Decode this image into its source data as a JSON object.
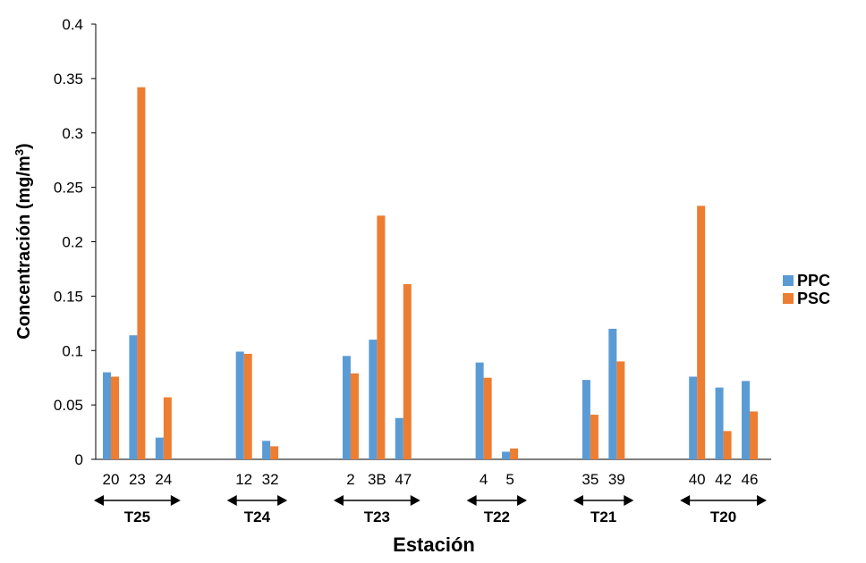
{
  "chart_data": {
    "type": "bar",
    "ylabel_main": "Concentración (mg/m",
    "ylabel_sup": "3",
    "ylabel_tail": ")",
    "xlabel": "Estación",
    "ylim": [
      0,
      0.4
    ],
    "yticks": [
      "0",
      "0.05",
      "0.1",
      "0.15",
      "0.2",
      "0.25",
      "0.3",
      "0.35",
      "0.4"
    ],
    "legend_position": "right",
    "colors": {
      "PPC": "#5B9BD5",
      "PSC": "#ED7D31"
    },
    "series": [
      {
        "name": "PPC",
        "values": [
          0.08,
          0.114,
          0.02,
          0.099,
          0.017,
          0.095,
          0.11,
          0.038,
          0.089,
          0.007,
          0.073,
          0.12,
          0.076,
          0.066,
          0.072
        ]
      },
      {
        "name": "PSC",
        "values": [
          0.076,
          0.342,
          0.057,
          0.097,
          0.012,
          0.079,
          0.224,
          0.161,
          0.075,
          0.01,
          0.041,
          0.09,
          0.233,
          0.026,
          0.044
        ]
      }
    ],
    "categories": [
      "20",
      "23",
      "24",
      "12",
      "32",
      "2",
      "3B",
      "47",
      "4",
      "5",
      "35",
      "39",
      "40",
      "42",
      "46"
    ],
    "groups": [
      {
        "label": "T25",
        "count": 3
      },
      {
        "label": "T24",
        "count": 2
      },
      {
        "label": "T23",
        "count": 3
      },
      {
        "label": "T22",
        "count": 2
      },
      {
        "label": "T21",
        "count": 2
      },
      {
        "label": "T20",
        "count": 3
      }
    ]
  }
}
